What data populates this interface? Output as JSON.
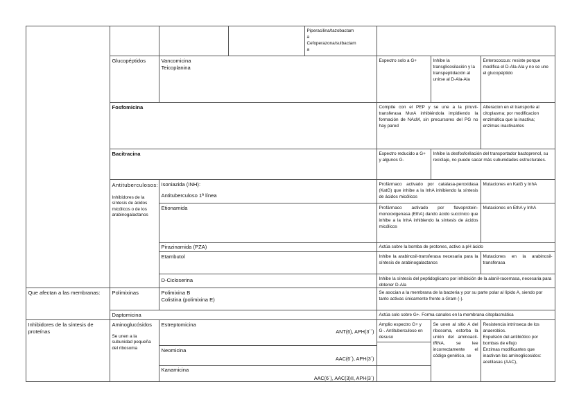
{
  "row_top": {
    "col5": "Piperacilina/tazobactam\na\nCefoperazona/sulbactam\na"
  },
  "glucopeptidos": {
    "group": "Glucopéptidos",
    "drugs": "Vancomicina\nTeicoplanina",
    "spectrum": "Espectro solo a G+",
    "mechanism": "Inhibe la transglicosilación y la transpeptidación al unirse al D-Ala-Ala",
    "resistance": "Enterococcus: resiste porque modifica el D-Ala-Ala y no se une el glucopéptido"
  },
  "fosfomicina": {
    "drug": "Fosfomicina",
    "mechanism": "Compite con el PEP y se une a la piruvil-transferasa MurA inhibiéndola impidiendo la formación de NAcM, sin precursores del PG no hay pared",
    "resistance": "Alteracion en el transporte al citoplasma; por modificacion enzimática que la inactiva; enzimas inactivantes"
  },
  "bacitracina": {
    "drug": "Bacitracina",
    "spectrum": "Espectro reducido a G+ y algunos G-",
    "mechanism": "Inhibe la desfosforilación del transportador bactoprenol, su reciclaje, no puede sacar más subunidades estructurales."
  },
  "antituberculosos": {
    "group": "Antituberculosos:",
    "group_note": "Inhibidores de la síntesis de ácidos micólicos o de los arabinogalactanos",
    "isoniazida": {
      "drug": "Isoniazida (INH):",
      "note": "Antituberculoso 1ª línea",
      "mechanism": "Profármaco activado por catalasa-peroxidasa (KatG) que inhibe a la InhA inhibiendo la síntesis de ácidos micólicos",
      "resistance": "Mutaciones en KatG y InhA"
    },
    "etionamida": {
      "drug": "Etionamida",
      "mechanism": "Profármaco activado por flavoprotein-monooxigenasa (EthA) dando ácido succínico que inhibe a la InhA inhibiendo la síntesis de ácidos micólicos",
      "resistance": "Mutaciones en EthA y InhA"
    },
    "pirazinamida": {
      "drug": "Pirazinamida (PZA)",
      "mechanism": "Actúa sobre la bomba de protones, activo a pH ácido"
    },
    "etambutol": {
      "drug": "Etambutol",
      "mechanism": "Inhibe la arabinosil-transferasa necesaria para la síntesis de arabinogalactanos",
      "resistance": "Mutaciones en la arabinosil-transferasa"
    },
    "cicloserina": {
      "drug": "D-Cicloserina",
      "mechanism": "Inhibe la síntesis del peptidoglicano por inhibición de la alanil-racemasa, necesaria para obtener D-Ala"
    }
  },
  "membranas": {
    "category": "Que afectan a las membranas:",
    "polimixinas": {
      "group": "Polimixinas",
      "drugs": "Polimixina B\nColistina (polimixina E)",
      "mechanism": "Se asocian a la membrana de la bacteria y por su parte polar al lípido A, siendo por tanto activas únicamente frente a Gram (-)."
    },
    "daptomicina": {
      "drug": "Daptomicina",
      "mechanism": "Actúa solo sobre G+. Forma canales en la membrana citoplasmática"
    }
  },
  "proteinas": {
    "category": "Inhibidores de la síntesis de proteínas",
    "group": "Aminoglucósidos",
    "group_note": "Se unen a la subunidad pequeña del ribosoma",
    "estreptomicina": {
      "drug": "Estreptomicina",
      "enzymes": "ANT(6), APH(3´´)",
      "spectrum": "Amplio espectro G+ y G-. Antituberculoso en desuso"
    },
    "neomicina": {
      "drug": "Neomicina",
      "enzymes": "AAC(6´), APH(3´)"
    },
    "kanamicina": {
      "drug": "Kanamicina",
      "enzymes": "AAC(6´), AAC(3)II, APH(3´)"
    },
    "mechanism": "Se unen al sitio A del ribosoma, estorba la unión del aminoacil-tRNA, se lee incorrectamente el código genético, se",
    "resistance": "Resistencia intrínseca de los anaerobios.\nExpulsión del antibiótico por bombas de eflujo\nEnzimas modificantes que inactivan los aminoglicosidos: acetilasas (AAC),"
  }
}
